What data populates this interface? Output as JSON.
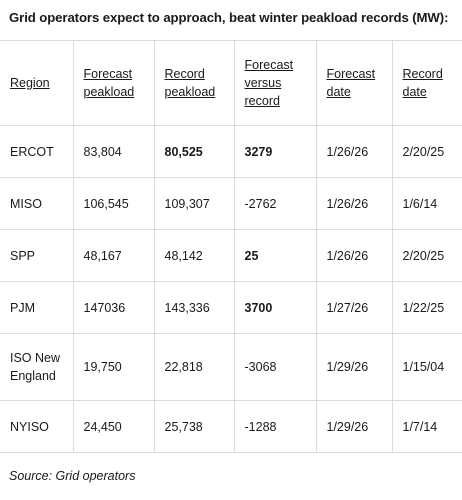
{
  "title": "Grid operators expect to approach, beat winter peakload records (MW):",
  "headers": [
    "Region",
    "Forecast peakload",
    "Record peakload",
    "Forecast versus record",
    "Forecast date",
    "Record date"
  ],
  "rows": [
    {
      "region": "ERCOT",
      "forecast": "83,804",
      "record": "80,525",
      "diff": "3279",
      "forecast_date": "1/26/26",
      "record_date": "2/20/25"
    },
    {
      "region": "MISO",
      "forecast": "106,545",
      "record": "109,307",
      "diff": "-2762",
      "forecast_date": "1/26/26",
      "record_date": "1/6/14"
    },
    {
      "region": "SPP",
      "forecast": "48,167",
      "record": "48,142",
      "diff": "25",
      "forecast_date": "1/26/26",
      "record_date": "2/20/25"
    },
    {
      "region": "PJM",
      "forecast": "147036",
      "record": "143,336",
      "diff": "3700",
      "forecast_date": "1/27/26",
      "record_date": "1/22/25"
    },
    {
      "region": "ISO New England",
      "forecast": "19,750",
      "record": "22,818",
      "diff": "-3068",
      "forecast_date": "1/29/26",
      "record_date": "1/15/04"
    },
    {
      "region": "NYISO",
      "forecast": "24,450",
      "record": "25,738",
      "diff": "-1288",
      "forecast_date": "1/29/26",
      "record_date": "1/7/14"
    }
  ],
  "source": "Source: Grid operators"
}
